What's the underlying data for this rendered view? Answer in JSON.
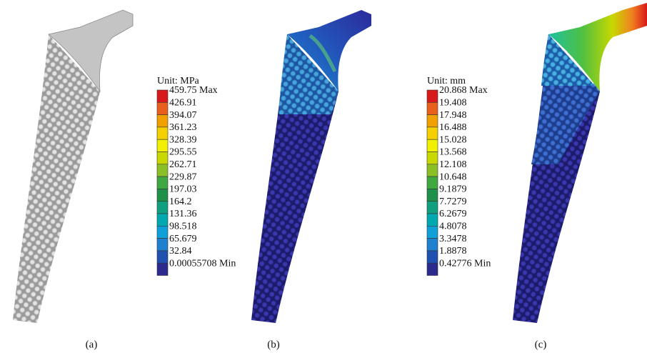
{
  "panels": [
    {
      "label": "(a)"
    },
    {
      "label": "(b)",
      "legend": {
        "unit": "Unit: MPa",
        "entries": [
          {
            "label": "459.75 Max",
            "color": "#d7191c"
          },
          {
            "label": "426.91",
            "color": "#e8601c"
          },
          {
            "label": "394.07",
            "color": "#f0a000"
          },
          {
            "label": "361.23",
            "color": "#f5d000"
          },
          {
            "label": "328.39",
            "color": "#f0f000"
          },
          {
            "label": "295.55",
            "color": "#c8d800"
          },
          {
            "label": "262.71",
            "color": "#8cbf26"
          },
          {
            "label": "229.87",
            "color": "#40a840"
          },
          {
            "label": "197.03",
            "color": "#1e9048"
          },
          {
            "label": "164.2",
            "color": "#10a080"
          },
          {
            "label": "131.36",
            "color": "#00a8b0"
          },
          {
            "label": "98.518",
            "color": "#10a0d8"
          },
          {
            "label": "65.679",
            "color": "#2080d0"
          },
          {
            "label": "32.84",
            "color": "#2050b0"
          },
          {
            "label": "0.00055708 Min",
            "color": "#2c2a8c"
          }
        ]
      }
    },
    {
      "label": "(c)",
      "legend": {
        "unit": "Unit: mm",
        "entries": [
          {
            "label": "20.868 Max",
            "color": "#d7191c"
          },
          {
            "label": "19.408",
            "color": "#e8601c"
          },
          {
            "label": "17.948",
            "color": "#f0a000"
          },
          {
            "label": "16.488",
            "color": "#f5d000"
          },
          {
            "label": "15.028",
            "color": "#f0f000"
          },
          {
            "label": "13.568",
            "color": "#c8d800"
          },
          {
            "label": "12.108",
            "color": "#8cbf26"
          },
          {
            "label": "10.648",
            "color": "#40a840"
          },
          {
            "label": "9.1879",
            "color": "#1e9048"
          },
          {
            "label": "7.7279",
            "color": "#10a080"
          },
          {
            "label": "6.2679",
            "color": "#00a8b0"
          },
          {
            "label": "4.8078",
            "color": "#10a0d8"
          },
          {
            "label": "3.3478",
            "color": "#2080d0"
          },
          {
            "label": "1.8878",
            "color": "#2050b0"
          },
          {
            "label": "0.42776 Min",
            "color": "#2c2a8c"
          }
        ]
      }
    }
  ]
}
